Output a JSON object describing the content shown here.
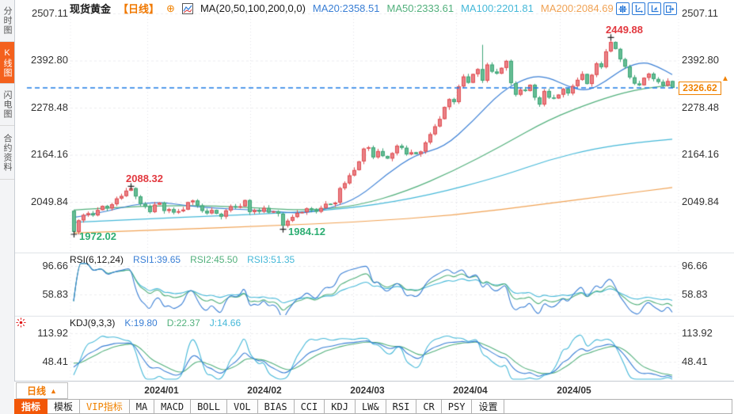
{
  "sidebar": {
    "items": [
      {
        "label": "分时图",
        "active": false
      },
      {
        "label": "K线图",
        "active": true
      },
      {
        "label": "闪电图",
        "active": false
      },
      {
        "label": "合约资料",
        "active": false
      }
    ]
  },
  "header": {
    "title": "现货黄金",
    "period_tag": "【日线】",
    "plus_icon": "⊕",
    "ma_label": "MA(20,50,100,200,0,0)",
    "ma_values": [
      {
        "text": "MA20:2358.51",
        "color": "#3a7fd5"
      },
      {
        "text": "MA50:2333.61",
        "color": "#52b07c"
      },
      {
        "text": "MA100:2201.81",
        "color": "#45b8d8"
      },
      {
        "text": "MA200:2084.69",
        "color": "#f0a254"
      }
    ]
  },
  "toolbar_icons": [
    "pan",
    "y-axis-scale",
    "x-axis-scale",
    "restore-view"
  ],
  "main_chart": {
    "y_labels": [
      "2507.11",
      "2392.80",
      "2278.48",
      "2164.16",
      "2049.84"
    ],
    "current_price": "2326.62",
    "badge_arrow": "▲"
  },
  "rsi_panel": {
    "title": "RSI(6,12,24)",
    "values": [
      {
        "text": "RSI1:39.65",
        "color": "#3a7fd5"
      },
      {
        "text": "RSI2:45.50",
        "color": "#52b07c"
      },
      {
        "text": "RSI3:51.35",
        "color": "#45b8d8"
      }
    ],
    "y_labels": [
      "96.66",
      "58.83"
    ]
  },
  "kdj_panel": {
    "title": "KDJ(9,3,3)",
    "values": [
      {
        "text": "K:19.80",
        "color": "#3a7fd5"
      },
      {
        "text": "D:22.37",
        "color": "#52b07c"
      },
      {
        "text": "J:14.66",
        "color": "#45b8d8"
      }
    ],
    "y_labels": [
      "113.92",
      "48.41"
    ]
  },
  "xaxis": {
    "period_button": "日线",
    "period_arrow": "▲",
    "dates": [
      "2024/01",
      "2024/02",
      "2024/03",
      "2024/04",
      "2024/05"
    ]
  },
  "bottom_tabs": {
    "items": [
      {
        "label": "指标",
        "style": "active"
      },
      {
        "label": "模板",
        "style": ""
      },
      {
        "label": "VIP指标",
        "style": "vip"
      },
      {
        "label": "MA",
        "style": ""
      },
      {
        "label": "MACD",
        "style": ""
      },
      {
        "label": "BOLL",
        "style": ""
      },
      {
        "label": "VOL",
        "style": ""
      },
      {
        "label": "BIAS",
        "style": ""
      },
      {
        "label": "CCI",
        "style": ""
      },
      {
        "label": "KDJ",
        "style": ""
      },
      {
        "label": "LW&",
        "style": ""
      },
      {
        "label": "RSI",
        "style": ""
      },
      {
        "label": "CR",
        "style": ""
      },
      {
        "label": "PSY",
        "style": ""
      },
      {
        "label": "设置",
        "style": ""
      }
    ]
  },
  "chart_data": {
    "type": "candlestick",
    "title": "现货黄金 日线",
    "x_months": [
      "2024/01",
      "2024/02",
      "2024/03",
      "2024/04",
      "2024/05"
    ],
    "y_ticks": [
      2507.11,
      2392.8,
      2278.48,
      2164.16,
      2049.84
    ],
    "first_open": 2028,
    "last_price": 2326.62,
    "closes": [
      1977,
      2005,
      2018,
      2022,
      2017,
      2030,
      2040,
      2034,
      2044,
      2058,
      2064,
      2077,
      2083,
      2063,
      2045,
      2038,
      2025,
      2043,
      2048,
      2028,
      2032,
      2024,
      2027,
      2031,
      2049,
      2053,
      2041,
      2028,
      2022,
      2030,
      2021,
      2014,
      2029,
      2039,
      2036,
      2039,
      2054,
      2025,
      2030,
      2026,
      2035,
      2024,
      2027,
      2021,
      1992,
      2004,
      2013,
      2023,
      2025,
      2034,
      2030,
      2026,
      2035,
      2045,
      2044,
      2048,
      2083,
      2095,
      2114,
      2127,
      2148,
      2179,
      2182,
      2158,
      2173,
      2161,
      2155,
      2168,
      2186,
      2181,
      2165,
      2170,
      2166,
      2172,
      2194,
      2214,
      2233,
      2251,
      2280,
      2299,
      2292,
      2330,
      2354,
      2339,
      2360,
      2372,
      2344,
      2383,
      2366,
      2361,
      2375,
      2392,
      2338,
      2310,
      2322,
      2319,
      2334,
      2303,
      2286,
      2319,
      2303,
      2301,
      2310,
      2324,
      2313,
      2331,
      2346,
      2360,
      2336,
      2358,
      2386,
      2377,
      2415,
      2438,
      2421,
      2396,
      2378,
      2352,
      2337,
      2333,
      2351,
      2361,
      2348,
      2341,
      2332,
      2343,
      2326.62
    ],
    "key_points": [
      {
        "i": 0,
        "low": 1972.02
      },
      {
        "i": 12,
        "high": 2088.32
      },
      {
        "i": 44,
        "low": 1984.12
      },
      {
        "i": 86,
        "high": 2431.0
      },
      {
        "i": 113,
        "high": 2449.88
      }
    ],
    "annotations": [
      {
        "text": "2449.88",
        "i": 113,
        "value": 2449.88,
        "kind": "high",
        "color": "#e2383f"
      },
      {
        "text": "2088.32",
        "i": 12,
        "value": 2088.32,
        "kind": "high",
        "color": "#e2383f"
      },
      {
        "text": "1984.12",
        "i": 44,
        "value": 1984.12,
        "kind": "low",
        "color": "#2eae73"
      },
      {
        "text": "1972.02",
        "i": 0,
        "value": 1972.02,
        "kind": "low",
        "color": "#2eae73"
      }
    ],
    "ma_lines": [
      {
        "name": "MA20",
        "color": "#3a7fd5",
        "points": [
          [
            0,
            2012
          ],
          [
            6,
            2024
          ],
          [
            12,
            2042
          ],
          [
            18,
            2050
          ],
          [
            24,
            2040
          ],
          [
            30,
            2034
          ],
          [
            36,
            2031
          ],
          [
            42,
            2027
          ],
          [
            48,
            2021
          ],
          [
            54,
            2034
          ],
          [
            60,
            2060
          ],
          [
            66,
            2118
          ],
          [
            72,
            2165
          ],
          [
            78,
            2182
          ],
          [
            84,
            2245
          ],
          [
            90,
            2318
          ],
          [
            96,
            2355
          ],
          [
            100,
            2352
          ],
          [
            104,
            2330
          ],
          [
            108,
            2318
          ],
          [
            112,
            2342
          ],
          [
            116,
            2376
          ],
          [
            120,
            2390
          ],
          [
            123,
            2378
          ],
          [
            126,
            2358.5
          ]
        ]
      },
      {
        "name": "MA50",
        "color": "#52b07c",
        "points": [
          [
            0,
            2030
          ],
          [
            10,
            2037
          ],
          [
            20,
            2041
          ],
          [
            30,
            2040
          ],
          [
            40,
            2034
          ],
          [
            50,
            2029
          ],
          [
            60,
            2041
          ],
          [
            70,
            2075
          ],
          [
            80,
            2125
          ],
          [
            90,
            2185
          ],
          [
            100,
            2250
          ],
          [
            110,
            2295
          ],
          [
            118,
            2322
          ],
          [
            126,
            2333.6
          ]
        ]
      },
      {
        "name": "MA100",
        "color": "#45b8d8",
        "points": [
          [
            0,
            2000
          ],
          [
            15,
            2008
          ],
          [
            30,
            2016
          ],
          [
            45,
            2023
          ],
          [
            60,
            2036
          ],
          [
            75,
            2066
          ],
          [
            90,
            2112
          ],
          [
            100,
            2152
          ],
          [
            110,
            2180
          ],
          [
            118,
            2193
          ],
          [
            126,
            2201.8
          ]
        ]
      },
      {
        "name": "MA200",
        "color": "#f0a254",
        "points": [
          [
            0,
            1974
          ],
          [
            20,
            1982
          ],
          [
            40,
            1991
          ],
          [
            60,
            2001
          ],
          [
            80,
            2017
          ],
          [
            100,
            2046
          ],
          [
            112,
            2064
          ],
          [
            126,
            2084.7
          ]
        ]
      }
    ],
    "indicators": {
      "rsi": {
        "periods": [
          6,
          12,
          24
        ],
        "last": [
          39.65,
          45.5,
          51.35
        ],
        "axis": [
          96.66,
          58.83
        ]
      },
      "kdj": {
        "periods": [
          9,
          3,
          3
        ],
        "last": [
          19.8,
          22.37,
          14.66
        ],
        "axis": [
          113.92,
          48.41
        ]
      }
    },
    "colors": {
      "up": "#df4e52",
      "up_fill": "#ea8186",
      "down": "#3da577",
      "down_fill": "#66bd94",
      "price_line": "#1d7be5",
      "line1": "#3a7fd5",
      "line2": "#52b07c",
      "line3": "#45b8d8",
      "accent": "#f08200"
    }
  }
}
